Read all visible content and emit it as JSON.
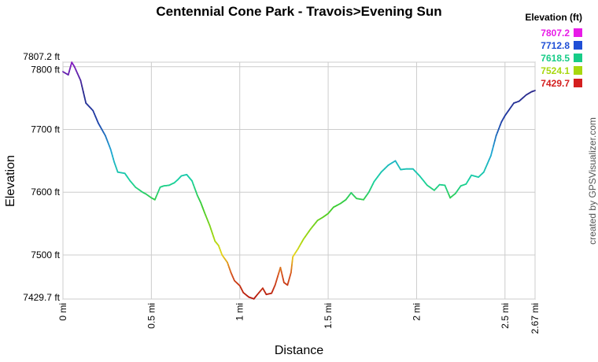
{
  "chart_data": {
    "type": "line",
    "title": "Centennial Cone Park - Travois>Evening Sun",
    "xlabel": "Distance",
    "ylabel": "Elevation",
    "xlim": [
      0,
      2.67
    ],
    "ylim": [
      7429.7,
      7807.2
    ],
    "x_ticks": [
      {
        "value": 0,
        "label": "0 mi"
      },
      {
        "value": 0.5,
        "label": "0.5 mi"
      },
      {
        "value": 1,
        "label": "1 mi"
      },
      {
        "value": 1.5,
        "label": "1.5 mi"
      },
      {
        "value": 2,
        "label": "2 mi"
      },
      {
        "value": 2.5,
        "label": "2.5 mi"
      },
      {
        "value": 2.67,
        "label": "2.67 mi"
      }
    ],
    "y_ticks": [
      {
        "value": 7429.7,
        "label": "7429.7 ft"
      },
      {
        "value": 7500,
        "label": "7500 ft"
      },
      {
        "value": 7600,
        "label": "7600 ft"
      },
      {
        "value": 7700,
        "label": "7700 ft"
      },
      {
        "value": 7800,
        "label": "7800 ft"
      },
      {
        "value": 7807.2,
        "label": "7807.2 ft"
      }
    ],
    "grid": true,
    "legend": {
      "title": "Elevation (ft)",
      "placement": "top-right",
      "entries": [
        {
          "label": "7807.2",
          "color": "#e81be8"
        },
        {
          "label": "7712.8",
          "color": "#1f4fd6"
        },
        {
          "label": "7618.5",
          "color": "#17cc87"
        },
        {
          "label": "7524.1",
          "color": "#a8d80f"
        },
        {
          "label": "7429.7",
          "color": "#d41f1f"
        }
      ]
    },
    "color_scale": [
      {
        "value": 7429.7,
        "color": "#b5170d"
      },
      {
        "value": 7470,
        "color": "#d7541e"
      },
      {
        "value": 7500,
        "color": "#e8d51c"
      },
      {
        "value": 7524.1,
        "color": "#a8d80f"
      },
      {
        "value": 7575,
        "color": "#3fcc2a"
      },
      {
        "value": 7618.5,
        "color": "#18d1a0"
      },
      {
        "value": 7665,
        "color": "#1fa6d6"
      },
      {
        "value": 7712.8,
        "color": "#1f3fa8"
      },
      {
        "value": 7760,
        "color": "#2a2a8c"
      },
      {
        "value": 7807.2,
        "color": "#8a1fc4"
      }
    ],
    "series": [
      {
        "x": [
          0,
          0.03,
          0.05,
          0.065,
          0.1,
          0.13,
          0.17,
          0.2,
          0.24,
          0.27,
          0.29,
          0.31,
          0.35,
          0.38,
          0.41,
          0.45,
          0.47,
          0.5,
          0.52,
          0.55,
          0.57,
          0.6,
          0.63,
          0.65,
          0.67,
          0.7,
          0.73,
          0.76,
          0.78,
          0.8,
          0.83,
          0.86,
          0.88,
          0.9,
          0.93,
          0.95,
          0.97,
          1.0,
          1.02,
          1.05,
          1.08,
          1.1,
          1.13,
          1.15,
          1.18,
          1.2,
          1.23,
          1.25,
          1.27,
          1.29,
          1.3,
          1.33,
          1.36,
          1.4,
          1.44,
          1.47,
          1.5,
          1.53,
          1.57,
          1.6,
          1.63,
          1.66,
          1.7,
          1.73,
          1.76,
          1.8,
          1.84,
          1.88,
          1.91,
          1.94,
          1.98,
          2.02,
          2.06,
          2.1,
          2.13,
          2.16,
          2.19,
          2.22,
          2.25,
          2.28,
          2.31,
          2.35,
          2.38,
          2.42,
          2.45,
          2.48,
          2.5,
          2.52,
          2.55,
          2.58,
          2.62,
          2.65,
          2.67
        ],
        "y": [
          7792,
          7787,
          7807,
          7800,
          7778,
          7742,
          7730,
          7710,
          7690,
          7668,
          7648,
          7632,
          7630,
          7618,
          7608,
          7600,
          7597,
          7591,
          7588,
          7608,
          7610,
          7611,
          7615,
          7620,
          7626,
          7628,
          7618,
          7595,
          7583,
          7568,
          7547,
          7522,
          7515,
          7500,
          7488,
          7472,
          7459,
          7451,
          7440,
          7433,
          7430,
          7437,
          7447,
          7437,
          7439,
          7452,
          7480,
          7456,
          7452,
          7472,
          7497,
          7510,
          7525,
          7541,
          7555,
          7560,
          7566,
          7576,
          7582,
          7588,
          7599,
          7590,
          7588,
          7600,
          7617,
          7632,
          7643,
          7650,
          7636,
          7637,
          7637,
          7625,
          7611,
          7603,
          7612,
          7611,
          7591,
          7598,
          7610,
          7613,
          7627,
          7624,
          7632,
          7658,
          7690,
          7712,
          7722,
          7730,
          7742,
          7745,
          7755,
          7760,
          7762
        ]
      }
    ],
    "credit": "created by GPSVisualizer.com"
  }
}
